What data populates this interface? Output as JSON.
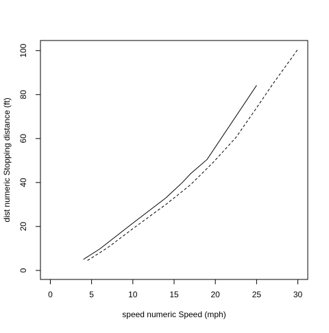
{
  "chart_data": {
    "type": "line",
    "title": "",
    "xlabel": "speed numeric Speed (mph)",
    "ylabel": "dist numeric Stopping distance (ft)",
    "xlim": [
      -1.2,
      31.2
    ],
    "ylim": [
      -4.1,
      104.6
    ],
    "x_ticks": [
      0,
      5,
      10,
      15,
      20,
      25,
      30
    ],
    "y_ticks": [
      0,
      20,
      40,
      60,
      80,
      100
    ],
    "grid": false,
    "series": [
      {
        "line_style": "solid",
        "color": "#000000",
        "points": [
          [
            4,
            5
          ],
          [
            6,
            9.8
          ],
          [
            10,
            21.5
          ],
          [
            14,
            33
          ],
          [
            16,
            40
          ],
          [
            17,
            44
          ],
          [
            19,
            50.5
          ],
          [
            25,
            84.2
          ]
        ]
      },
      {
        "line_style": "dashed",
        "color": "#000000",
        "points": [
          [
            4.5,
            4.5
          ],
          [
            7,
            10.5
          ],
          [
            10,
            19
          ],
          [
            14,
            30
          ],
          [
            17,
            39
          ],
          [
            19.7,
            49
          ],
          [
            22.5,
            60.5
          ],
          [
            25,
            74
          ],
          [
            27,
            85
          ],
          [
            30,
            100.6
          ]
        ]
      }
    ]
  }
}
